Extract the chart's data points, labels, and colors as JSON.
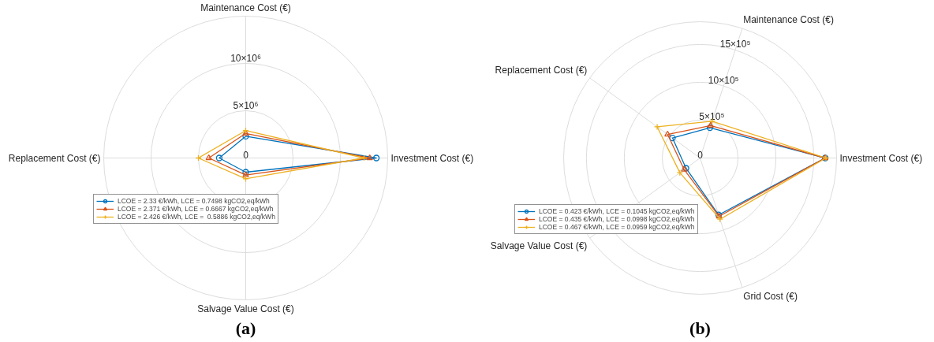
{
  "chart_data": [
    {
      "type": "radar",
      "title": "(a)",
      "categories": [
        "Maintenance Cost (€)",
        "Investment Cost (€)",
        "Salvage Value Cost (€)",
        "Replacement Cost (€)"
      ],
      "ylim": [
        0,
        15000000
      ],
      "yticks": [
        0,
        {
          "value": 5000000,
          "label": "5×10⁶"
        },
        {
          "value": 10000000,
          "label": "10×10⁶"
        }
      ],
      "grid": true,
      "legend": "bottom",
      "series": [
        {
          "name": "LCOE = 2.33 €/kWh, LCE = 0.7498 kgCO2,eq/kWh",
          "color": "#0072bd",
          "marker": "circle",
          "values": [
            2300000,
            13800000,
            1500000,
            2800000
          ]
        },
        {
          "name": "LCOE = 2.371 €/kWh, LCE = 0.6667 kgCO2,eq/kWh",
          "color": "#d95319",
          "marker": "triangle",
          "values": [
            2600000,
            13100000,
            1800000,
            3900000
          ]
        },
        {
          "name": "LCOE = 2.426 €/kWh, LCE =  0.5886 kgCO2,eq/kWh",
          "color": "#edb120",
          "marker": "cross",
          "values": [
            2900000,
            12500000,
            2200000,
            5000000
          ]
        }
      ]
    },
    {
      "type": "radar",
      "title": "(b)",
      "categories": [
        "Maintenance Cost (€)",
        "Investment Cost (€)",
        "Grid Cost (€)",
        "Salvage Value Cost (€)",
        "Replacement Cost (€)"
      ],
      "ylim": [
        0,
        1800000
      ],
      "yticks": [
        0,
        {
          "value": 500000,
          "label": "5×10⁵"
        },
        {
          "value": 1000000,
          "label": "10×10⁵"
        },
        {
          "value": 1500000,
          "label": "15×10⁵"
        }
      ],
      "grid": true,
      "legend": "bottom left",
      "series": [
        {
          "name": "LCOE = 0.423 €/kWh, LCE = 0.1045 kgCO2,eq/kWh",
          "color": "#0072bd",
          "marker": "circle",
          "values": [
            420000,
            1650000,
            790000,
            230000,
            450000
          ]
        },
        {
          "name": "LCOE = 0.435 €/kWh, LCE = 0.0998 kgCO2,eq/kWh",
          "color": "#d95319",
          "marker": "triangle",
          "values": [
            450000,
            1650000,
            810000,
            260000,
            530000
          ]
        },
        {
          "name": "LCOE = 0.467 €/kWh, LCE = 0.0959 kgCO2,eq/kWh",
          "color": "#edb120",
          "marker": "cross",
          "values": [
            510000,
            1660000,
            850000,
            330000,
            700000
          ]
        }
      ]
    }
  ]
}
